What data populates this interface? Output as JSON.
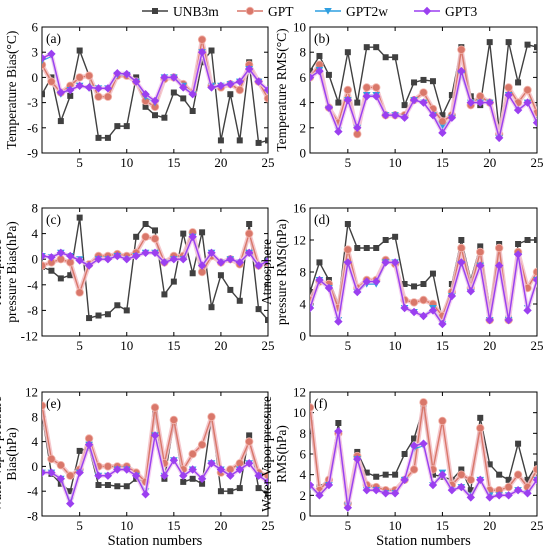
{
  "legend": {
    "placement": "top-center",
    "entries": [
      {
        "label": "UNB3m",
        "color": "#404040",
        "marker": "square"
      },
      {
        "label": "GPT",
        "color": "#d9776a",
        "marker": "circle"
      },
      {
        "label": "GPT2w",
        "color": "#2f9fe0",
        "marker": "triangle-down"
      },
      {
        "label": "GPT3",
        "color": "#9b3ff0",
        "marker": "diamond"
      }
    ]
  },
  "chart_data": [
    {
      "type": "line",
      "panel": "(a)",
      "ylabel": [
        "Temperature Bias(°C)"
      ],
      "xlim": [
        1,
        25
      ],
      "ylim": [
        -9,
        6
      ],
      "xticks": [
        5,
        10,
        15,
        20,
        25
      ],
      "yticks": [
        -9,
        -6,
        -3,
        0,
        3,
        6
      ],
      "xtick_labels": [
        "5",
        "10",
        "15",
        "20",
        "25"
      ],
      "ytick_labels": [
        "-9",
        "-6",
        "-3",
        "0",
        "3",
        "6"
      ],
      "x": [
        1,
        2,
        3,
        4,
        5,
        6,
        7,
        8,
        9,
        10,
        11,
        12,
        13,
        14,
        15,
        16,
        17,
        18,
        19,
        20,
        21,
        22,
        23,
        24,
        25
      ],
      "series": [
        {
          "name": "UNB3m",
          "values": [
            -2.0,
            0.0,
            -5.2,
            -2.2,
            3.2,
            0.2,
            -7.2,
            -7.2,
            -5.8,
            -5.8,
            0.0,
            -3.5,
            -4.5,
            -4.8,
            -1.8,
            -2.5,
            -4.0,
            1.8,
            3.2,
            -7.5,
            -2.0,
            -7.5,
            1.8,
            -7.8,
            -7.5
          ]
        },
        {
          "name": "GPT",
          "values": [
            1.5,
            -0.5,
            -1.8,
            -1.0,
            0.0,
            0.2,
            -2.3,
            -2.3,
            0.2,
            0.2,
            -0.5,
            -2.8,
            -3.5,
            -0.2,
            0.0,
            -0.8,
            -1.8,
            4.5,
            -1.0,
            -1.2,
            -0.8,
            -1.5,
            1.5,
            -0.5,
            -2.5
          ]
        },
        {
          "name": "GPT2w",
          "values": [
            2.0,
            2.5,
            -2.0,
            -1.5,
            -1.0,
            -1.3,
            -1.3,
            -1.3,
            0.3,
            0.3,
            -0.5,
            -2.3,
            -3.0,
            0.0,
            0.0,
            -1.0,
            -2.0,
            3.0,
            -1.0,
            -1.0,
            -0.8,
            -0.5,
            1.0,
            -0.5,
            -1.5
          ]
        },
        {
          "name": "GPT3",
          "values": [
            2.3,
            2.8,
            -1.8,
            -1.5,
            -1.0,
            -1.2,
            -1.3,
            -1.3,
            0.5,
            0.4,
            -0.5,
            -2.0,
            -2.8,
            0.0,
            0.0,
            -1.2,
            -2.0,
            3.0,
            -1.2,
            -1.0,
            -0.8,
            -0.5,
            1.0,
            -0.5,
            -1.5
          ]
        }
      ]
    },
    {
      "type": "line",
      "panel": "(b)",
      "ylabel": [
        "Temperature RMS(°C)"
      ],
      "xlim": [
        1,
        25
      ],
      "ylim": [
        0,
        10
      ],
      "xticks": [
        5,
        10,
        15,
        20,
        25
      ],
      "yticks": [
        0,
        2,
        4,
        6,
        8,
        10
      ],
      "xtick_labels": [
        "5",
        "10",
        "15",
        "20",
        "25"
      ],
      "ytick_labels": [
        "0",
        "2",
        "4",
        "6",
        "8",
        "10"
      ],
      "x": [
        1,
        2,
        3,
        4,
        5,
        6,
        7,
        8,
        9,
        10,
        11,
        12,
        13,
        14,
        15,
        16,
        17,
        18,
        19,
        20,
        21,
        22,
        23,
        24,
        25
      ],
      "series": [
        {
          "name": "UNB3m",
          "values": [
            6.5,
            7.7,
            6.2,
            4.0,
            8.0,
            4.0,
            8.4,
            8.4,
            7.6,
            7.6,
            3.8,
            5.6,
            5.8,
            5.7,
            3.0,
            4.6,
            8.4,
            4.5,
            3.8,
            8.8,
            1.8,
            8.8,
            5.6,
            8.6,
            8.4
          ]
        },
        {
          "name": "GPT",
          "values": [
            6.0,
            7.0,
            3.6,
            2.4,
            5.0,
            1.5,
            5.2,
            5.2,
            3.0,
            3.0,
            3.0,
            4.2,
            4.8,
            3.5,
            2.5,
            3.0,
            8.2,
            3.8,
            4.5,
            4.0,
            1.5,
            5.2,
            4.0,
            5.0,
            3.2
          ]
        },
        {
          "name": "GPT2w",
          "values": [
            6.0,
            6.6,
            3.5,
            1.8,
            4.2,
            2.0,
            4.6,
            4.6,
            3.0,
            3.0,
            2.8,
            4.2,
            4.0,
            3.0,
            2.0,
            2.8,
            6.2,
            4.0,
            4.0,
            4.0,
            1.2,
            4.6,
            3.4,
            4.0,
            2.4
          ]
        },
        {
          "name": "GPT3",
          "values": [
            6.0,
            6.5,
            3.6,
            1.7,
            4.2,
            2.0,
            4.5,
            4.5,
            3.0,
            3.0,
            2.8,
            4.2,
            4.0,
            3.0,
            1.6,
            2.8,
            6.5,
            4.0,
            4.0,
            4.0,
            1.2,
            4.6,
            3.4,
            4.0,
            2.4
          ]
        }
      ]
    },
    {
      "type": "line",
      "panel": "(c)",
      "ylabel": [
        "Atmosphere",
        "pressure Bias(hPa)"
      ],
      "xlim": [
        1,
        25
      ],
      "ylim": [
        -12,
        8
      ],
      "xticks": [
        5,
        10,
        15,
        20,
        25
      ],
      "yticks": [
        -12,
        -8,
        -4,
        0,
        4,
        8
      ],
      "xtick_labels": [
        "5",
        "10",
        "15",
        "20",
        "25"
      ],
      "ytick_labels": [
        "-12",
        "-8",
        "-4",
        "0",
        "4",
        "8"
      ],
      "x": [
        1,
        2,
        3,
        4,
        5,
        6,
        7,
        8,
        9,
        10,
        11,
        12,
        13,
        14,
        15,
        16,
        17,
        18,
        19,
        20,
        21,
        22,
        23,
        24,
        25
      ],
      "series": [
        {
          "name": "UNB3m",
          "values": [
            -1.2,
            -1.8,
            -3.0,
            -2.5,
            6.5,
            -9.2,
            -8.8,
            -8.6,
            -7.2,
            -8.0,
            3.5,
            5.5,
            4.5,
            -5.5,
            -3.5,
            4.0,
            -2.2,
            4.2,
            -7.5,
            -2.5,
            -4.8,
            -6.5,
            5.5,
            -7.8,
            -9.5
          ]
        },
        {
          "name": "GPT",
          "values": [
            -1.0,
            -0.5,
            0.0,
            -0.5,
            -5.2,
            -0.8,
            0.5,
            0.5,
            0.8,
            0.5,
            1.0,
            3.5,
            3.2,
            -0.5,
            0.5,
            0.5,
            4.2,
            -2.0,
            0.5,
            -0.5,
            0.0,
            -0.8,
            4.0,
            -1.0,
            -0.5
          ]
        },
        {
          "name": "GPT2w",
          "values": [
            0.5,
            0.3,
            1.0,
            0.5,
            0.0,
            -1.0,
            0.0,
            0.0,
            0.5,
            0.0,
            0.5,
            1.0,
            1.0,
            -0.5,
            0.0,
            0.0,
            3.5,
            -1.0,
            1.0,
            -0.5,
            0.0,
            -0.5,
            1.0,
            -1.0,
            -0.3
          ]
        },
        {
          "name": "GPT3",
          "values": [
            0.5,
            0.3,
            1.0,
            0.5,
            -0.2,
            -1.0,
            0.0,
            0.0,
            0.5,
            0.0,
            0.5,
            1.0,
            1.0,
            -0.5,
            0.0,
            0.0,
            3.5,
            -1.0,
            1.0,
            -0.5,
            0.0,
            -0.5,
            1.0,
            -1.0,
            -0.3
          ]
        }
      ]
    },
    {
      "type": "line",
      "panel": "(d)",
      "ylabel": [
        "Atmosphere",
        "pressure RMS(hPa)"
      ],
      "xlim": [
        1,
        25
      ],
      "ylim": [
        0,
        16
      ],
      "xticks": [
        5,
        10,
        15,
        20,
        25
      ],
      "yticks": [
        0,
        4,
        8,
        12,
        16
      ],
      "xtick_labels": [
        "5",
        "10",
        "15",
        "20",
        "25"
      ],
      "ytick_labels": [
        "0",
        "4",
        "8",
        "12",
        "16"
      ],
      "x": [
        1,
        2,
        3,
        4,
        5,
        6,
        7,
        8,
        9,
        10,
        11,
        12,
        13,
        14,
        15,
        16,
        17,
        18,
        19,
        20,
        21,
        22,
        23,
        24,
        25
      ],
      "series": [
        {
          "name": "UNB3m",
          "values": [
            5.5,
            9.2,
            7.0,
            4.0,
            14.0,
            11.0,
            11.0,
            11.0,
            12.0,
            12.4,
            6.5,
            6.2,
            6.5,
            7.8,
            2.0,
            6.5,
            12.0,
            7.0,
            11.2,
            3.5,
            11.5,
            2.2,
            11.5,
            12.0,
            12.0
          ]
        },
        {
          "name": "GPT",
          "values": [
            4.5,
            6.8,
            6.5,
            3.5,
            10.8,
            6.0,
            7.0,
            7.0,
            9.5,
            9.0,
            4.5,
            4.2,
            4.5,
            4.0,
            2.5,
            5.5,
            11.0,
            6.0,
            10.5,
            2.0,
            11.0,
            2.0,
            10.5,
            6.0,
            8.0
          ]
        },
        {
          "name": "GPT2w",
          "values": [
            3.5,
            7.0,
            6.0,
            2.0,
            9.0,
            5.5,
            6.5,
            6.5,
            9.2,
            9.2,
            3.5,
            3.0,
            2.5,
            3.5,
            1.5,
            5.0,
            9.0,
            5.5,
            8.8,
            2.0,
            8.5,
            2.0,
            10.0,
            3.5,
            7.0
          ]
        },
        {
          "name": "GPT3",
          "values": [
            3.5,
            7.0,
            6.0,
            1.8,
            9.2,
            5.5,
            6.8,
            6.8,
            9.2,
            9.2,
            3.5,
            3.0,
            2.5,
            3.2,
            1.5,
            5.0,
            9.2,
            5.6,
            8.8,
            2.0,
            8.8,
            2.0,
            10.2,
            3.2,
            7.0
          ]
        }
      ]
    },
    {
      "type": "line",
      "panel": "(e)",
      "ylabel": [
        "Water Vapor pressure",
        "Bias(hPa)"
      ],
      "xlabel": "Station numbers",
      "xlim": [
        1,
        25
      ],
      "ylim": [
        -8,
        12
      ],
      "xticks": [
        5,
        10,
        15,
        20,
        25
      ],
      "yticks": [
        -8,
        -4,
        0,
        4,
        8,
        12
      ],
      "xtick_labels": [
        "5",
        "10",
        "15",
        "20",
        "25"
      ],
      "ytick_labels": [
        "-8",
        "-4",
        "0",
        "4",
        "8",
        "12"
      ],
      "x": [
        1,
        2,
        3,
        4,
        5,
        6,
        7,
        8,
        9,
        10,
        11,
        12,
        13,
        14,
        15,
        16,
        17,
        18,
        19,
        20,
        21,
        22,
        23,
        24,
        25
      ],
      "series": [
        {
          "name": "UNB3m",
          "values": [
            8.5,
            -1.2,
            -2.8,
            -4.0,
            2.5,
            3.0,
            -3.0,
            -3.0,
            -3.2,
            -3.2,
            -2.0,
            -2.5,
            8.5,
            -2.0,
            7.0,
            -2.5,
            -2.0,
            -2.8,
            8.0,
            -4.0,
            -4.0,
            -3.5,
            5.0,
            -3.5,
            -4.5
          ]
        },
        {
          "name": "GPT",
          "values": [
            9.8,
            1.2,
            0.2,
            -1.5,
            -0.5,
            4.5,
            0.0,
            0.0,
            0.0,
            0.0,
            -1.0,
            -2.5,
            9.5,
            0.5,
            7.5,
            -0.5,
            2.0,
            3.5,
            8.0,
            -1.0,
            -0.5,
            0.5,
            4.0,
            -1.0,
            -1.5
          ]
        },
        {
          "name": "GPT2w",
          "values": [
            -1.0,
            -1.0,
            -2.0,
            -5.5,
            -1.0,
            3.5,
            -1.5,
            -1.5,
            -0.5,
            -0.5,
            -1.5,
            -4.0,
            5.0,
            -1.5,
            1.0,
            -1.5,
            -0.5,
            -2.0,
            0.5,
            -0.5,
            -1.5,
            -0.5,
            0.5,
            -1.5,
            -2.5
          ]
        },
        {
          "name": "GPT3",
          "values": [
            -1.0,
            -1.0,
            -2.0,
            -6.0,
            -1.0,
            3.5,
            -1.5,
            -1.5,
            -0.5,
            -0.5,
            -1.5,
            -4.5,
            5.0,
            -1.5,
            1.0,
            -1.5,
            -0.5,
            -2.0,
            0.5,
            -0.5,
            -1.5,
            -0.5,
            0.5,
            -1.5,
            -2.5
          ]
        }
      ]
    },
    {
      "type": "line",
      "panel": "(f)",
      "ylabel": [
        "Water Vapor pressure",
        "RMS(hPa)"
      ],
      "xlabel": "Station numbers",
      "xlim": [
        1,
        25
      ],
      "ylim": [
        0,
        12
      ],
      "xticks": [
        5,
        10,
        15,
        20,
        25
      ],
      "yticks": [
        0,
        2,
        4,
        6,
        8,
        10,
        12
      ],
      "xtick_labels": [
        "5",
        "10",
        "15",
        "20",
        "25"
      ],
      "ytick_labels": [
        "0",
        "2",
        "4",
        "6",
        "8",
        "10",
        "12"
      ],
      "x": [
        1,
        2,
        3,
        4,
        5,
        6,
        7,
        8,
        9,
        10,
        11,
        12,
        13,
        14,
        15,
        16,
        17,
        18,
        19,
        20,
        21,
        22,
        23,
        24,
        25
      ],
      "series": [
        {
          "name": "UNB3m",
          "values": [
            9.0,
            2.8,
            3.5,
            9.0,
            1.0,
            6.2,
            4.2,
            3.8,
            4.0,
            4.0,
            6.0,
            7.5,
            10.5,
            4.0,
            3.8,
            3.5,
            4.5,
            2.5,
            9.5,
            5.0,
            4.0,
            3.5,
            7.0,
            3.5,
            5.0
          ]
        },
        {
          "name": "GPT",
          "values": [
            10.5,
            2.5,
            3.5,
            8.0,
            1.2,
            5.8,
            3.0,
            2.8,
            2.5,
            2.5,
            3.5,
            4.5,
            11.0,
            4.5,
            9.2,
            3.0,
            4.0,
            3.5,
            8.5,
            2.5,
            2.5,
            2.8,
            4.0,
            2.8,
            4.5
          ]
        },
        {
          "name": "GPT2w",
          "values": [
            2.8,
            2.0,
            3.0,
            8.0,
            1.0,
            5.5,
            2.5,
            2.5,
            2.2,
            2.2,
            3.5,
            6.5,
            6.8,
            3.0,
            4.2,
            2.5,
            2.8,
            2.0,
            3.5,
            2.0,
            2.0,
            2.0,
            2.5,
            2.2,
            3.5
          ]
        },
        {
          "name": "GPT3",
          "values": [
            3.0,
            2.0,
            3.0,
            8.2,
            0.8,
            5.5,
            2.5,
            2.5,
            2.2,
            2.2,
            3.5,
            6.8,
            7.0,
            3.0,
            4.0,
            2.5,
            2.8,
            1.8,
            3.5,
            1.8,
            2.0,
            2.0,
            2.5,
            2.2,
            3.5
          ]
        }
      ]
    }
  ]
}
